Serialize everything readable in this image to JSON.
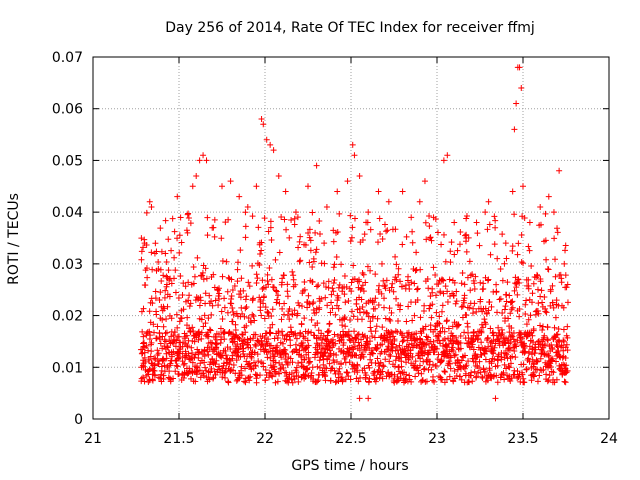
{
  "chart_data": {
    "type": "scatter",
    "title": "Day 256 of 2014, Rate Of TEC Index for receiver ffmj",
    "xlabel": "GPS time / hours",
    "ylabel": "ROTI / TECUs",
    "xlim": [
      21,
      24
    ],
    "ylim": [
      0,
      0.07
    ],
    "x_ticks": [
      21,
      21.5,
      22,
      22.5,
      23,
      23.5,
      24
    ],
    "x_tick_labels": [
      "21",
      "21.5",
      "22",
      "22.5",
      "23",
      "23.5",
      "24"
    ],
    "y_ticks": [
      0,
      0.01,
      0.02,
      0.03,
      0.04,
      0.05,
      0.06,
      0.07
    ],
    "y_tick_labels": [
      "0",
      "0.01",
      "0.02",
      "0.03",
      "0.04",
      "0.05",
      "0.06",
      "0.07"
    ],
    "grid": true,
    "marker": "plus",
    "color": "#ff0000",
    "series": [
      {
        "name": "ROTI",
        "x_range": [
          21.28,
          23.76
        ],
        "sample_step": 0.005,
        "points": [
          [
            21.3,
            0.034
          ],
          [
            21.33,
            0.042
          ],
          [
            21.34,
            0.041
          ],
          [
            21.36,
            0.032
          ],
          [
            21.38,
            0.029
          ],
          [
            21.43,
            0.026
          ],
          [
            21.49,
            0.043
          ],
          [
            21.55,
            0.036
          ],
          [
            21.58,
            0.045
          ],
          [
            21.6,
            0.047
          ],
          [
            21.62,
            0.05
          ],
          [
            21.64,
            0.051
          ],
          [
            21.66,
            0.05
          ],
          [
            21.7,
            0.037
          ],
          [
            21.75,
            0.045
          ],
          [
            21.8,
            0.046
          ],
          [
            21.85,
            0.043
          ],
          [
            21.9,
            0.041
          ],
          [
            21.95,
            0.045
          ],
          [
            21.98,
            0.058
          ],
          [
            21.99,
            0.057
          ],
          [
            22.01,
            0.054
          ],
          [
            22.03,
            0.053
          ],
          [
            22.05,
            0.052
          ],
          [
            22.08,
            0.047
          ],
          [
            22.12,
            0.044
          ],
          [
            22.18,
            0.04
          ],
          [
            22.25,
            0.045
          ],
          [
            22.3,
            0.049
          ],
          [
            22.36,
            0.041
          ],
          [
            22.42,
            0.044
          ],
          [
            22.48,
            0.046
          ],
          [
            22.51,
            0.053
          ],
          [
            22.52,
            0.051
          ],
          [
            22.55,
            0.047
          ],
          [
            22.6,
            0.04
          ],
          [
            22.66,
            0.044
          ],
          [
            22.72,
            0.042
          ],
          [
            22.8,
            0.044
          ],
          [
            22.85,
            0.039
          ],
          [
            22.9,
            0.042
          ],
          [
            22.93,
            0.046
          ],
          [
            22.98,
            0.039
          ],
          [
            23.04,
            0.05
          ],
          [
            23.06,
            0.051
          ],
          [
            23.1,
            0.038
          ],
          [
            23.17,
            0.035
          ],
          [
            23.23,
            0.038
          ],
          [
            23.28,
            0.04
          ],
          [
            23.3,
            0.042
          ],
          [
            23.35,
            0.031
          ],
          [
            23.37,
            0.029
          ],
          [
            23.4,
            0.034
          ],
          [
            23.44,
            0.044
          ],
          [
            23.45,
            0.056
          ],
          [
            23.46,
            0.061
          ],
          [
            23.47,
            0.068
          ],
          [
            23.48,
            0.068
          ],
          [
            23.49,
            0.064
          ],
          [
            23.5,
            0.045
          ],
          [
            23.54,
            0.038
          ],
          [
            23.6,
            0.041
          ],
          [
            23.65,
            0.043
          ],
          [
            23.68,
            0.04
          ],
          [
            23.71,
            0.048
          ],
          [
            23.74,
            0.03
          ],
          [
            23.76,
            0.026
          ],
          [
            22.55,
            0.004
          ],
          [
            22.6,
            0.004
          ],
          [
            23.34,
            0.004
          ]
        ]
      }
    ]
  }
}
